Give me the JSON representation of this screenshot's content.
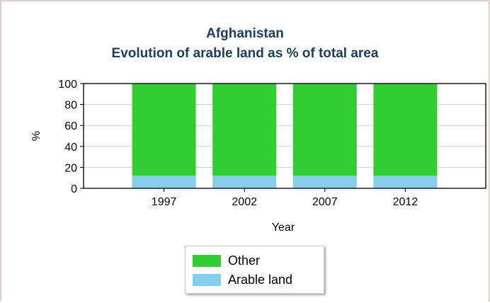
{
  "chart_data": {
    "type": "bar",
    "stacked": true,
    "title": "Afghanistan",
    "subtitle": "Evolution of arable land as % of total area",
    "xlabel": "Year",
    "ylabel": "%",
    "categories": [
      "1997",
      "2002",
      "2007",
      "2012"
    ],
    "ylim": [
      0,
      100
    ],
    "yticks": [
      0,
      20,
      40,
      60,
      80,
      100
    ],
    "grid": true,
    "legend_position": "bottom-center",
    "series": [
      {
        "name": "Arable land",
        "color": "#87ceeb",
        "values": [
          12,
          12,
          12,
          12
        ]
      },
      {
        "name": "Other",
        "color": "#32cd32",
        "values": [
          88,
          88,
          88,
          88
        ]
      }
    ]
  },
  "legend": [
    {
      "label": "Other",
      "color": "#32cd32"
    },
    {
      "label": "Arable land",
      "color": "#87ceeb"
    }
  ]
}
